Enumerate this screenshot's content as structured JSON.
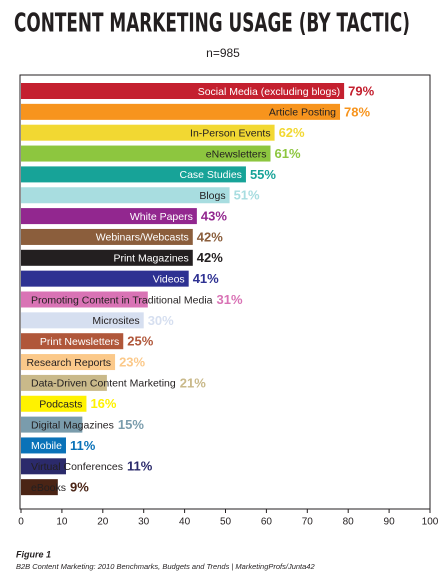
{
  "chart_data": {
    "type": "bar",
    "orientation": "horizontal",
    "title": "CONTENT MARKETING USAGE (BY TACTIC)",
    "subtitle": "n=985",
    "categories": [
      "Social Media (excluding blogs)",
      "Article Posting",
      "In-Person Events",
      "eNewsletters",
      "Case Studies",
      "Blogs",
      "White Papers",
      "Webinars/Webcasts",
      "Print Magazines",
      "Videos",
      "Promoting Content in Traditional Media",
      "Microsites",
      "Print Newsletters",
      "Research Reports",
      "Data-Driven Content Marketing",
      "Podcasts",
      "Digital Magazines",
      "Mobile",
      "Virtual Conferences",
      "eBooks"
    ],
    "values": [
      79,
      78,
      62,
      61,
      55,
      51,
      43,
      42,
      42,
      41,
      31,
      30,
      25,
      23,
      21,
      16,
      15,
      11,
      11,
      9
    ],
    "value_labels": [
      "79%",
      "78%",
      "62%",
      "61%",
      "55%",
      "51%",
      "43%",
      "42%",
      "42%",
      "41%",
      "31%",
      "30%",
      "25%",
      "23%",
      "21%",
      "16%",
      "15%",
      "11%",
      "11%",
      "9%"
    ],
    "colors": [
      "#c4202f",
      "#f7941d",
      "#f2d832",
      "#8dc63f",
      "#17a398",
      "#a8dde0",
      "#92278f",
      "#8b5e3c",
      "#231f20",
      "#2e3192",
      "#d973b5",
      "#d6dff0",
      "#b0573a",
      "#fbc98a",
      "#c9b98a",
      "#fff200",
      "#7a9cac",
      "#0a72b8",
      "#2b2a6b",
      "#4a2415"
    ],
    "xlim": [
      0,
      100
    ],
    "xticks": [
      0,
      10,
      20,
      30,
      40,
      50,
      60,
      70,
      80,
      90,
      100
    ],
    "grid": false,
    "footnote_title": "Figure 1",
    "footnote": "B2B Content Marketing: 2010 Benchmarks, Budgets and Trends | MarketingProfs/Junta42"
  }
}
